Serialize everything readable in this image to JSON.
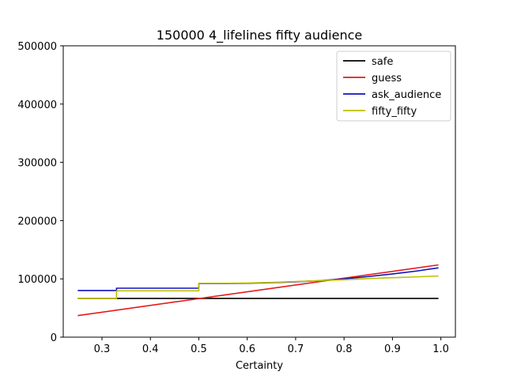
{
  "chart_data": {
    "type": "line",
    "title": "150000 4_lifelines fifty audience",
    "xlabel": "Certainty",
    "ylabel": "",
    "xlim": [
      0.22,
      1.03
    ],
    "ylim": [
      0,
      500000
    ],
    "xticks": [
      "0.3",
      "0.4",
      "0.5",
      "0.6",
      "0.7",
      "0.8",
      "0.9",
      "1.0"
    ],
    "yticks": [
      "0",
      "100000",
      "200000",
      "300000",
      "400000",
      "500000"
    ],
    "grid": false,
    "legend_position": "top-right",
    "series": [
      {
        "name": "safe",
        "color": "#000000",
        "x": [
          0.25,
          0.995
        ],
        "y": [
          66500,
          66500
        ]
      },
      {
        "name": "guess",
        "color": "#e41a1a",
        "x": [
          0.25,
          0.995
        ],
        "y": [
          37000,
          124000
        ]
      },
      {
        "name": "ask_audience",
        "color": "#1010c0",
        "x": [
          0.25,
          0.33,
          0.33,
          0.5,
          0.5,
          0.55,
          0.6,
          0.65,
          0.7,
          0.75,
          0.8,
          0.85,
          0.9,
          0.95,
          0.995
        ],
        "y": [
          80000,
          80000,
          84000,
          84000,
          92000,
          92000,
          92500,
          93500,
          95000,
          97000,
          100000,
          104000,
          108500,
          113500,
          119000
        ]
      },
      {
        "name": "fifty_fifty",
        "color": "#bfbf00",
        "x": [
          0.25,
          0.33,
          0.33,
          0.5,
          0.5,
          0.55,
          0.6,
          0.65,
          0.7,
          0.75,
          0.8,
          0.85,
          0.9,
          0.95,
          0.995
        ],
        "y": [
          66500,
          66500,
          79500,
          79500,
          92500,
          92500,
          93000,
          94000,
          95500,
          97000,
          98500,
          100500,
          102000,
          103500,
          105000
        ]
      }
    ]
  }
}
